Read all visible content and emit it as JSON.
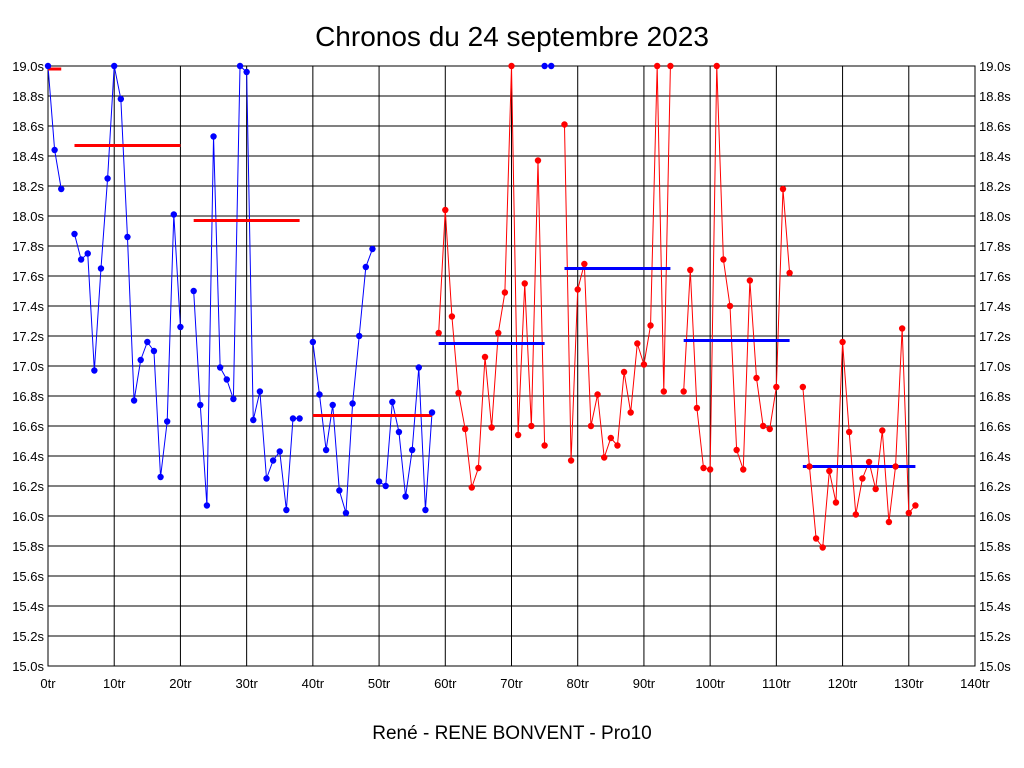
{
  "chart_data": {
    "type": "line",
    "title": "Chronos du 24 septembre 2023",
    "subtitle": "René - RENE BONVENT - Pro10",
    "xlim": [
      0,
      140
    ],
    "ylim": [
      15.0,
      19.0
    ],
    "x_ticks": [
      0,
      10,
      20,
      30,
      40,
      50,
      60,
      70,
      80,
      90,
      100,
      110,
      120,
      130,
      140
    ],
    "x_tick_labels": [
      "0tr",
      "10tr",
      "20tr",
      "30tr",
      "40tr",
      "50tr",
      "60tr",
      "70tr",
      "80tr",
      "90tr",
      "100tr",
      "110tr",
      "120tr",
      "130tr",
      "140tr"
    ],
    "y_ticks": [
      15.0,
      15.2,
      15.4,
      15.6,
      15.8,
      16.0,
      16.2,
      16.4,
      16.6,
      16.8,
      17.0,
      17.2,
      17.4,
      17.6,
      17.8,
      18.0,
      18.2,
      18.4,
      18.6,
      18.8,
      19.0
    ],
    "y_tick_labels": [
      "15.0s",
      "15.2s",
      "15.4s",
      "15.6s",
      "15.8s",
      "16.0s",
      "16.2s",
      "16.4s",
      "16.6s",
      "16.8s",
      "17.0s",
      "17.2s",
      "17.4s",
      "17.6s",
      "17.8s",
      "18.0s",
      "18.2s",
      "18.4s",
      "18.6s",
      "18.8s",
      "19.0s"
    ],
    "grid": true,
    "y_axis_labels_both_sides": true,
    "series": [
      {
        "color": "#0000ff",
        "segments": [
          [
            [
              0,
              19.0
            ],
            [
              1,
              18.44
            ],
            [
              2,
              18.18
            ]
          ],
          [
            [
              4,
              17.88
            ],
            [
              5,
              17.71
            ],
            [
              6,
              17.75
            ],
            [
              7,
              16.97
            ],
            [
              8,
              17.65
            ],
            [
              9,
              18.25
            ],
            [
              10,
              19.0
            ],
            [
              11,
              18.78
            ],
            [
              12,
              17.86
            ],
            [
              13,
              16.77
            ],
            [
              14,
              17.04
            ],
            [
              15,
              17.16
            ],
            [
              16,
              17.1
            ],
            [
              17,
              16.26
            ],
            [
              18,
              16.63
            ],
            [
              19,
              18.01
            ],
            [
              20,
              17.26
            ]
          ],
          [
            [
              22,
              17.5
            ],
            [
              23,
              16.74
            ],
            [
              24,
              16.07
            ],
            [
              25,
              18.53
            ],
            [
              26,
              16.99
            ],
            [
              27,
              16.91
            ],
            [
              28,
              16.78
            ],
            [
              29,
              19.0
            ],
            [
              30,
              18.96
            ],
            [
              31,
              16.64
            ],
            [
              32,
              16.83
            ],
            [
              33,
              16.25
            ],
            [
              34,
              16.37
            ],
            [
              35,
              16.43
            ],
            [
              36,
              16.04
            ],
            [
              37,
              16.65
            ],
            [
              38,
              16.65
            ]
          ],
          [
            [
              40,
              17.16
            ],
            [
              41,
              16.81
            ],
            [
              42,
              16.44
            ],
            [
              43,
              16.74
            ],
            [
              44,
              16.17
            ],
            [
              45,
              16.02
            ],
            [
              46,
              16.75
            ],
            [
              47,
              17.2
            ],
            [
              48,
              17.66
            ],
            [
              49,
              17.78
            ]
          ],
          [
            [
              50,
              16.23
            ],
            [
              51,
              16.2
            ],
            [
              52,
              16.76
            ],
            [
              53,
              16.56
            ],
            [
              54,
              16.13
            ],
            [
              55,
              16.44
            ],
            [
              56,
              16.99
            ],
            [
              57,
              16.04
            ],
            [
              58,
              16.69
            ]
          ],
          [
            [
              75,
              19.0
            ],
            [
              76,
              19.0
            ]
          ]
        ]
      },
      {
        "color": "#ff0000",
        "segments": [
          [
            [
              59,
              17.22
            ],
            [
              60,
              18.04
            ],
            [
              61,
              17.33
            ],
            [
              62,
              16.82
            ],
            [
              63,
              16.58
            ],
            [
              64,
              16.19
            ],
            [
              65,
              16.32
            ],
            [
              66,
              17.06
            ],
            [
              67,
              16.59
            ],
            [
              68,
              17.22
            ],
            [
              69,
              17.49
            ],
            [
              70,
              19.0
            ],
            [
              71,
              16.54
            ],
            [
              72,
              17.55
            ],
            [
              73,
              16.6
            ],
            [
              74,
              18.37
            ],
            [
              75,
              16.47
            ]
          ],
          [
            [
              78,
              18.61
            ],
            [
              79,
              16.37
            ],
            [
              80,
              17.51
            ],
            [
              81,
              17.68
            ],
            [
              82,
              16.6
            ],
            [
              83,
              16.81
            ],
            [
              84,
              16.39
            ],
            [
              85,
              16.52
            ],
            [
              86,
              16.47
            ],
            [
              87,
              16.96
            ],
            [
              88,
              16.69
            ],
            [
              89,
              17.15
            ],
            [
              90,
              17.01
            ],
            [
              91,
              17.27
            ],
            [
              92,
              19.0
            ],
            [
              93,
              16.83
            ],
            [
              94,
              19.0
            ]
          ],
          [
            [
              96,
              16.83
            ],
            [
              97,
              17.64
            ],
            [
              98,
              16.72
            ],
            [
              99,
              16.32
            ],
            [
              100,
              16.31
            ],
            [
              101,
              19.0
            ],
            [
              102,
              17.71
            ],
            [
              103,
              17.4
            ],
            [
              104,
              16.44
            ],
            [
              105,
              16.31
            ],
            [
              106,
              17.57
            ],
            [
              107,
              16.92
            ],
            [
              108,
              16.6
            ],
            [
              109,
              16.58
            ],
            [
              110,
              16.86
            ],
            [
              111,
              18.18
            ],
            [
              112,
              17.62
            ]
          ],
          [
            [
              114,
              16.86
            ],
            [
              115,
              16.33
            ],
            [
              116,
              15.85
            ],
            [
              117,
              15.79
            ],
            [
              118,
              16.3
            ],
            [
              119,
              16.09
            ],
            [
              120,
              17.16
            ],
            [
              121,
              16.56
            ],
            [
              122,
              16.01
            ],
            [
              123,
              16.25
            ],
            [
              124,
              16.36
            ],
            [
              125,
              16.18
            ],
            [
              126,
              16.57
            ],
            [
              127,
              15.96
            ],
            [
              128,
              16.33
            ],
            [
              129,
              17.25
            ],
            [
              130,
              16.02
            ],
            [
              131,
              16.07
            ]
          ]
        ]
      }
    ],
    "averages": [
      {
        "color": "#ff0000",
        "x": [
          0,
          2
        ],
        "y": 18.98
      },
      {
        "color": "#ff0000",
        "x": [
          4,
          20
        ],
        "y": 18.47
      },
      {
        "color": "#ff0000",
        "x": [
          22,
          38
        ],
        "y": 17.97
      },
      {
        "color": "#ff0000",
        "x": [
          40,
          58
        ],
        "y": 16.67
      },
      {
        "color": "#0000ff",
        "x": [
          59,
          75
        ],
        "y": 17.15
      },
      {
        "color": "#0000ff",
        "x": [
          78,
          94
        ],
        "y": 17.65
      },
      {
        "color": "#0000ff",
        "x": [
          96,
          112
        ],
        "y": 17.17
      },
      {
        "color": "#0000ff",
        "x": [
          114,
          131
        ],
        "y": 16.33
      }
    ]
  }
}
